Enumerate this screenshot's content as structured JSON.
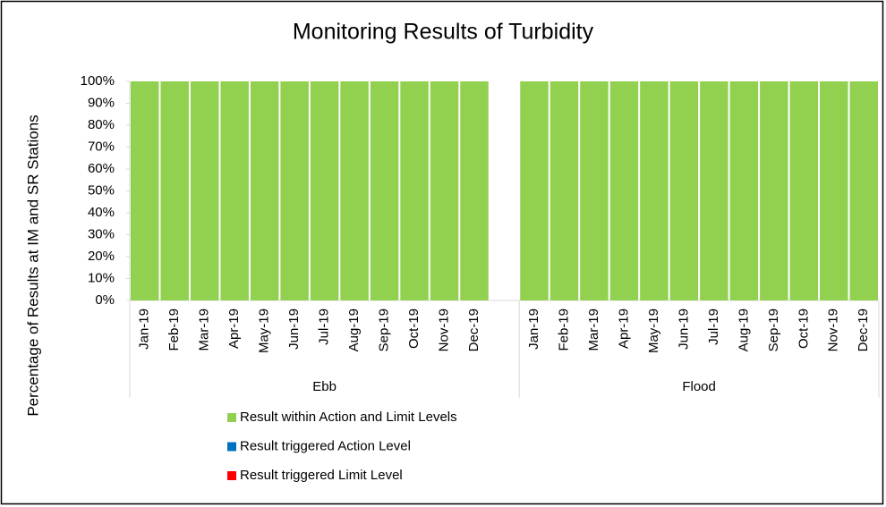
{
  "chart_data": {
    "type": "stacked-bar",
    "title": "Monitoring Results of Turbidity",
    "y_label": "Percentage of Results at IM and SR Stations",
    "groups": [
      {
        "name": "Ebb",
        "categories": [
          "Jan-19",
          "Feb-19",
          "Mar-19",
          "Apr-19",
          "May-19",
          "Jun-19",
          "Jul-19",
          "Aug-19",
          "Sep-19",
          "Oct-19",
          "Nov-19",
          "Dec-19",
          null
        ]
      },
      {
        "name": "Flood",
        "categories": [
          "Jan-19",
          "Feb-19",
          "Mar-19",
          "Apr-19",
          "May-19",
          "Jun-19",
          "Jul-19",
          "Aug-19",
          "Sep-19",
          "Oct-19",
          "Nov-19",
          "Dec-19"
        ]
      }
    ],
    "series": [
      {
        "name": "Result within Action and Limit Levels",
        "color": "#92d050",
        "values": [
          100,
          100,
          100,
          100,
          100,
          100,
          100,
          100,
          100,
          100,
          100,
          100,
          null,
          100,
          100,
          100,
          100,
          100,
          100,
          100,
          100,
          100,
          100,
          100,
          100
        ]
      },
      {
        "name": "Result triggered Action Level",
        "color": "#0070c0",
        "values": [
          0,
          0,
          0,
          0,
          0,
          0,
          0,
          0,
          0,
          0,
          0,
          0,
          null,
          0,
          0,
          0,
          0,
          0,
          0,
          0,
          0,
          0,
          0,
          0,
          0
        ]
      },
      {
        "name": "Result triggered Limit Level",
        "color": "#ff0000",
        "values": [
          0,
          0,
          0,
          0,
          0,
          0,
          0,
          0,
          0,
          0,
          0,
          0,
          null,
          0,
          0,
          0,
          0,
          0,
          0,
          0,
          0,
          0,
          0,
          0,
          0
        ]
      }
    ],
    "ylim": [
      0,
      100
    ],
    "yticks": [
      {
        "value": 0,
        "label": "0%"
      },
      {
        "value": 10,
        "label": "10%"
      },
      {
        "value": 20,
        "label": "20%"
      },
      {
        "value": 30,
        "label": "30%"
      },
      {
        "value": 40,
        "label": "40%"
      },
      {
        "value": 50,
        "label": "50%"
      },
      {
        "value": 60,
        "label": "60%"
      },
      {
        "value": 70,
        "label": "70%"
      },
      {
        "value": 80,
        "label": "80%"
      },
      {
        "value": 90,
        "label": "90%"
      },
      {
        "value": 100,
        "label": "100%"
      }
    ],
    "legend": "bottom"
  }
}
